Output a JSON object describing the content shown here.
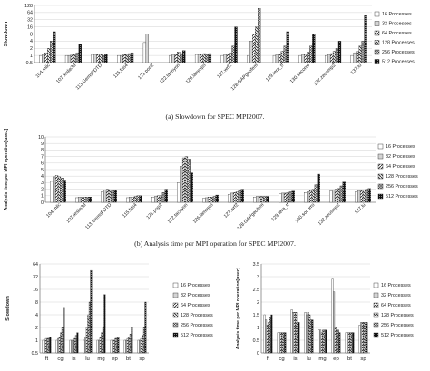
{
  "figure": {
    "caption_a": "(a) Slowdown for SPEC MPI2007.",
    "caption_b": "(b) Analysis time per MPI operation for SPEC MPI2007."
  },
  "chart_data": [
    {
      "type": "bar",
      "ylabel": "Slowdown",
      "yscale": "log2",
      "ylim": [
        0.5,
        128
      ],
      "yticks": [
        "0.5",
        "1",
        "2",
        "4",
        "8",
        "16",
        "32",
        "64",
        "128"
      ],
      "legend_position": "right",
      "categories": [
        "104.milc",
        "107.leslie3d",
        "113.GemsFDTD",
        "115.fds4",
        "121.pop2",
        "122.tachyon",
        "126.lammps",
        "127.wrf2",
        "128.GAPgeofem",
        "129.tera_tf",
        "130.socorro",
        "132.zeusmp2",
        "137.lu"
      ],
      "series": [
        {
          "name": "16 Processes",
          "values": [
            1.0,
            1.0,
            1.1,
            1.0,
            3.5,
            1.0,
            1.1,
            1.0,
            1.0,
            1.0,
            1.0,
            1.0,
            1.0
          ]
        },
        {
          "name": "32 Processes",
          "values": [
            1.1,
            1.0,
            1.1,
            1.0,
            8.0,
            1.1,
            1.1,
            1.1,
            4.0,
            1.1,
            1.1,
            1.1,
            1.3
          ]
        },
        {
          "name": "64 Processes",
          "values": [
            1.3,
            1.1,
            1.1,
            1.1,
            null,
            1.1,
            1.1,
            1.1,
            8.0,
            1.1,
            1.1,
            1.2,
            1.5
          ]
        },
        {
          "name": "128 Processes",
          "values": [
            2.0,
            1.1,
            1.1,
            1.1,
            null,
            1.4,
            1.2,
            1.3,
            16,
            1.5,
            1.4,
            1.5,
            2.5
          ]
        },
        {
          "name": "256 Processes",
          "values": [
            4.0,
            1.3,
            1.0,
            1.2,
            null,
            1.2,
            1.1,
            2.5,
            96,
            2.5,
            2.5,
            2.0,
            4.0
          ]
        },
        {
          "name": "512 Processes",
          "values": [
            10,
            3.0,
            1.1,
            1.3,
            null,
            1.6,
            1.2,
            16,
            null,
            10,
            8.0,
            4.0,
            48
          ]
        }
      ]
    },
    {
      "type": "bar",
      "ylabel": "Analysis time per MPI operation[usec]",
      "ylim": [
        0,
        10
      ],
      "yticks": [
        "0",
        "1",
        "2",
        "3",
        "4",
        "5",
        "6",
        "7",
        "8",
        "9",
        "10"
      ],
      "legend_position": "right",
      "categories": [
        "104.milc",
        "107.leslie3d",
        "113.GemsFDTD",
        "115.fds4",
        "121.pop2",
        "122.tachyon",
        "126.lammps",
        "127.wrf2",
        "128.GAPgeofem",
        "129.tera_tf",
        "130.socorro",
        "132.zeusmp2",
        "137.lu"
      ],
      "series": [
        {
          "name": "16 Processes",
          "values": [
            3.2,
            0.7,
            1.6,
            0.7,
            0.8,
            3.0,
            0.6,
            1.2,
            0.8,
            1.3,
            1.5,
            1.7,
            1.6
          ]
        },
        {
          "name": "32 Processes",
          "values": [
            3.9,
            0.8,
            1.9,
            0.8,
            0.9,
            5.5,
            0.7,
            1.4,
            0.9,
            1.4,
            1.6,
            1.9,
            1.8
          ]
        },
        {
          "name": "64 Processes",
          "values": [
            4.1,
            0.8,
            2.0,
            0.8,
            1.0,
            6.8,
            0.8,
            1.5,
            0.9,
            1.4,
            1.8,
            2.0,
            1.9
          ]
        },
        {
          "name": "128 Processes",
          "values": [
            3.9,
            0.8,
            1.9,
            0.9,
            1.0,
            7.0,
            0.8,
            1.6,
            0.9,
            1.5,
            2.0,
            2.1,
            1.9
          ]
        },
        {
          "name": "256 Processes",
          "values": [
            3.7,
            0.8,
            1.9,
            1.0,
            1.5,
            6.6,
            0.9,
            1.8,
            0.9,
            1.6,
            2.7,
            2.5,
            2.0
          ]
        },
        {
          "name": "512 Processes",
          "values": [
            3.4,
            0.8,
            1.8,
            1.0,
            2.0,
            4.5,
            1.1,
            2.0,
            0.9,
            1.7,
            4.3,
            3.1,
            2.1
          ]
        }
      ]
    },
    {
      "type": "bar",
      "ylabel": "Slowdown",
      "yscale": "log2",
      "ylim": [
        0.5,
        64
      ],
      "yticks": [
        "0.5",
        "1",
        "2",
        "4",
        "8",
        "16",
        "32",
        "64"
      ],
      "legend_position": "right",
      "categories": [
        "ft",
        "cg",
        "is",
        "lu",
        "mg",
        "ep",
        "bt",
        "sp"
      ],
      "series": [
        {
          "name": "16 Processes",
          "values": [
            1.0,
            1.0,
            1.0,
            1.0,
            1.0,
            1.0,
            1.0,
            1.0
          ]
        },
        {
          "name": "32 Processes",
          "values": [
            1.0,
            1.1,
            1.0,
            1.2,
            1.0,
            1.0,
            1.0,
            1.0
          ]
        },
        {
          "name": "64 Processes",
          "values": [
            1.1,
            1.2,
            1.0,
            2.0,
            1.2,
            1.0,
            1.1,
            1.1
          ]
        },
        {
          "name": "128 Processes",
          "values": [
            1.1,
            1.5,
            1.1,
            4.0,
            1.5,
            1.1,
            1.2,
            1.3
          ]
        },
        {
          "name": "256 Processes",
          "values": [
            1.2,
            2.0,
            1.3,
            8.0,
            2.0,
            1.2,
            1.4,
            2.0
          ]
        },
        {
          "name": "512 Processes",
          "values": [
            1.2,
            6.0,
            1.5,
            45,
            12,
            1.2,
            2.0,
            8.0
          ]
        }
      ]
    },
    {
      "type": "bar",
      "ylabel": "Analysis time per MPI operation[usec]",
      "ylim": [
        0,
        3.5
      ],
      "yticks": [
        "0",
        "0.5",
        "1",
        "1.5",
        "2",
        "2.5",
        "3",
        "3.5"
      ],
      "legend_position": "right",
      "categories": [
        "ft",
        "cg",
        "is",
        "lu",
        "mg",
        "ep",
        "bt",
        "sp"
      ],
      "series": [
        {
          "name": "16 Processes",
          "values": [
            1.5,
            0.8,
            1.7,
            1.6,
            0.9,
            2.9,
            0.8,
            1.1
          ]
        },
        {
          "name": "32 Processes",
          "values": [
            1.3,
            0.8,
            1.6,
            1.5,
            0.9,
            2.4,
            0.8,
            1.2
          ]
        },
        {
          "name": "64 Processes",
          "values": [
            1.1,
            0.8,
            1.6,
            1.6,
            0.8,
            1.0,
            0.8,
            1.2
          ]
        },
        {
          "name": "128 Processes",
          "values": [
            1.2,
            0.8,
            1.6,
            1.5,
            0.9,
            0.9,
            0.8,
            1.2
          ]
        },
        {
          "name": "256 Processes",
          "values": [
            1.4,
            0.8,
            1.2,
            1.3,
            0.9,
            0.9,
            0.8,
            1.2
          ]
        },
        {
          "name": "512 Processes",
          "values": [
            1.5,
            0.8,
            1.2,
            1.3,
            0.9,
            0.8,
            0.8,
            1.2
          ]
        }
      ]
    }
  ]
}
